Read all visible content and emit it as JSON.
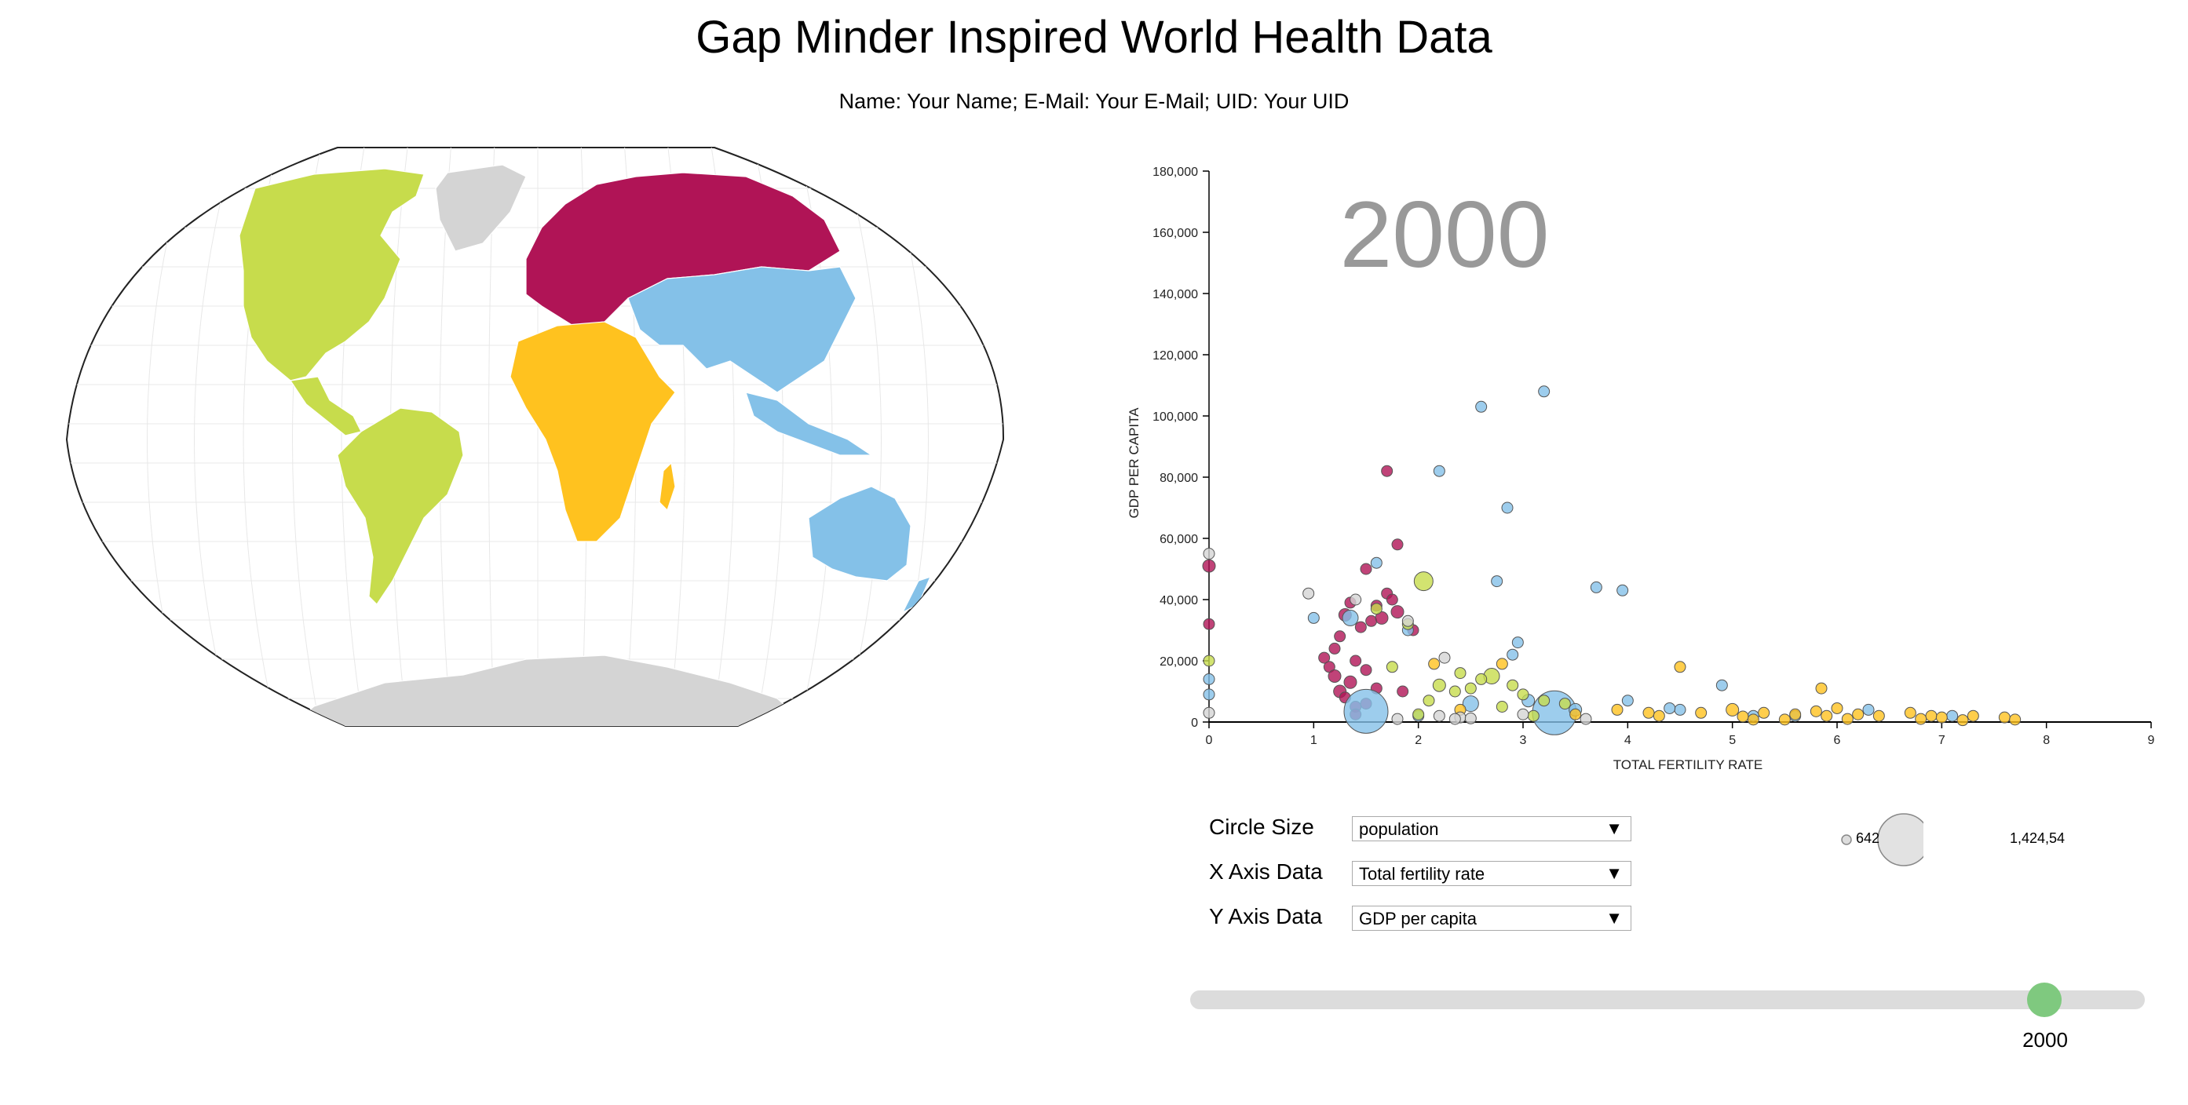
{
  "header": {
    "title": "Gap Minder Inspired World Health Data",
    "subtitle": "Name: Your Name; E-Mail: Your E-Mail; UID: Your UID"
  },
  "regions": {
    "americas": "#c7dc4c",
    "europe": "#b01456",
    "africa": "#ffc21f",
    "asia": "#84c1e8",
    "none": "#d4d4d4"
  },
  "controls": {
    "circle_size": {
      "label": "Circle Size",
      "value": "population"
    },
    "x_axis": {
      "label": "X Axis Data",
      "value": "Total fertility rate"
    },
    "y_axis": {
      "label": "Y Axis Data",
      "value": "GDP per capita"
    },
    "dropdown_icon": "triangle-down-icon"
  },
  "size_legend": {
    "min_label": "642",
    "max_label": "1,424,54"
  },
  "slider": {
    "value": "2000",
    "fraction": 0.895
  },
  "chart_data": {
    "type": "scatter",
    "year_label": "2000",
    "xlabel": "TOTAL FERTILITY RATE",
    "ylabel": "GDP PER CAPITA",
    "xlim": [
      0,
      9
    ],
    "ylim": [
      0,
      180000
    ],
    "x_ticks": [
      "0",
      "1",
      "2",
      "3",
      "4",
      "5",
      "6",
      "7",
      "8",
      "9"
    ],
    "y_ticks": [
      "0",
      "20,000",
      "40,000",
      "60,000",
      "80,000",
      "100,000",
      "120,000",
      "140,000",
      "160,000",
      "180,000"
    ],
    "series": [
      {
        "color": "#b01456",
        "points": [
          [
            0,
            51000,
            8
          ],
          [
            0,
            32000,
            7
          ],
          [
            1.1,
            21000,
            7
          ],
          [
            1.15,
            18000,
            7
          ],
          [
            1.2,
            15000,
            8
          ],
          [
            1.2,
            24000,
            7
          ],
          [
            1.25,
            10000,
            8
          ],
          [
            1.25,
            28000,
            7
          ],
          [
            1.3,
            35000,
            8
          ],
          [
            1.3,
            8000,
            7
          ],
          [
            1.35,
            13000,
            8
          ],
          [
            1.35,
            39000,
            7
          ],
          [
            1.4,
            20000,
            7
          ],
          [
            1.4,
            5000,
            7
          ],
          [
            1.45,
            31000,
            7
          ],
          [
            1.5,
            17000,
            7
          ],
          [
            1.5,
            50000,
            7
          ],
          [
            1.55,
            33000,
            7
          ],
          [
            1.6,
            38000,
            7
          ],
          [
            1.6,
            11000,
            7
          ],
          [
            1.65,
            34000,
            8
          ],
          [
            1.7,
            82000,
            7
          ],
          [
            1.7,
            42000,
            7
          ],
          [
            1.75,
            40000,
            7
          ],
          [
            1.8,
            36000,
            8
          ],
          [
            1.8,
            58000,
            7
          ],
          [
            1.85,
            10000,
            7
          ],
          [
            1.95,
            30000,
            7
          ],
          [
            1.5,
            6000,
            7
          ],
          [
            1.4,
            2500,
            7
          ]
        ]
      },
      {
        "color": "#84c1e8",
        "points": [
          [
            1.5,
            3500,
            28
          ],
          [
            3.3,
            3000,
            28
          ],
          [
            2.6,
            103000,
            7
          ],
          [
            3.2,
            108000,
            7
          ],
          [
            2.2,
            82000,
            7
          ],
          [
            2.85,
            70000,
            7
          ],
          [
            2.75,
            46000,
            7
          ],
          [
            3.7,
            44000,
            7
          ],
          [
            3.95,
            43000,
            7
          ],
          [
            1.6,
            52000,
            7
          ],
          [
            1.0,
            34000,
            7
          ],
          [
            1.35,
            34000,
            10
          ],
          [
            1.9,
            30000,
            7
          ],
          [
            2.95,
            26000,
            7
          ],
          [
            2.9,
            22000,
            7
          ],
          [
            4.9,
            12000,
            7
          ],
          [
            2.5,
            6000,
            10
          ],
          [
            3.05,
            7000,
            8
          ],
          [
            4.0,
            7000,
            7
          ],
          [
            4.5,
            4000,
            7
          ],
          [
            5.2,
            2000,
            7
          ],
          [
            6.3,
            4000,
            7
          ],
          [
            7.1,
            2000,
            7
          ],
          [
            5.6,
            2000,
            7
          ],
          [
            2.0,
            2000,
            7
          ],
          [
            0,
            14000,
            7
          ],
          [
            0,
            9000,
            7
          ],
          [
            3.5,
            4000,
            8
          ],
          [
            4.4,
            4500,
            7
          ]
        ]
      },
      {
        "color": "#c7dc4c",
        "points": [
          [
            2.05,
            46000,
            12
          ],
          [
            1.6,
            37000,
            7
          ],
          [
            1.9,
            32000,
            7
          ],
          [
            2.4,
            16000,
            7
          ],
          [
            2.7,
            15000,
            10
          ],
          [
            2.9,
            12000,
            7
          ],
          [
            2.2,
            12000,
            8
          ],
          [
            2.35,
            10000,
            7
          ],
          [
            2.5,
            11000,
            7
          ],
          [
            3.0,
            9000,
            7
          ],
          [
            3.2,
            7000,
            7
          ],
          [
            2.1,
            7000,
            7
          ],
          [
            2.8,
            5000,
            7
          ],
          [
            3.4,
            6000,
            7
          ],
          [
            2.0,
            2500,
            7
          ],
          [
            2.6,
            14000,
            7
          ],
          [
            0,
            20000,
            7
          ],
          [
            3.1,
            2000,
            7
          ],
          [
            1.75,
            18000,
            7
          ]
        ]
      },
      {
        "color": "#ffc21f",
        "points": [
          [
            2.15,
            19000,
            7
          ],
          [
            2.8,
            19000,
            7
          ],
          [
            4.5,
            18000,
            7
          ],
          [
            5.85,
            11000,
            7
          ],
          [
            5.0,
            4000,
            8
          ],
          [
            5.3,
            3000,
            7
          ],
          [
            5.6,
            2500,
            7
          ],
          [
            5.9,
            2000,
            7
          ],
          [
            6.0,
            4500,
            7
          ],
          [
            6.4,
            2000,
            7
          ],
          [
            6.7,
            3000,
            7
          ],
          [
            6.9,
            2000,
            7
          ],
          [
            7.0,
            1500,
            7
          ],
          [
            7.3,
            2000,
            7
          ],
          [
            7.6,
            1500,
            7
          ],
          [
            5.8,
            3500,
            7
          ],
          [
            4.7,
            3000,
            7
          ],
          [
            5.1,
            1800,
            7
          ],
          [
            3.9,
            4000,
            7
          ],
          [
            4.2,
            3000,
            7
          ],
          [
            6.1,
            1000,
            7
          ],
          [
            6.8,
            1000,
            7
          ],
          [
            7.7,
            800,
            7
          ],
          [
            5.5,
            800,
            7
          ],
          [
            4.3,
            2000,
            7
          ],
          [
            2.4,
            4000,
            7
          ],
          [
            3.5,
            2500,
            7
          ],
          [
            6.2,
            2500,
            7
          ],
          [
            5.2,
            800,
            7
          ],
          [
            7.2,
            600,
            7
          ]
        ]
      },
      {
        "color": "#d4d4d4",
        "points": [
          [
            0,
            55000,
            7
          ],
          [
            0.95,
            42000,
            7
          ],
          [
            1.9,
            33000,
            7
          ],
          [
            2.25,
            21000,
            7
          ],
          [
            0,
            3000,
            7
          ],
          [
            3.0,
            2500,
            7
          ],
          [
            2.4,
            1500,
            7
          ],
          [
            1.8,
            1000,
            7
          ],
          [
            3.6,
            1000,
            7
          ],
          [
            2.35,
            1000,
            7
          ],
          [
            2.2,
            2000,
            7
          ],
          [
            1.4,
            40000,
            7
          ],
          [
            2.5,
            1200,
            7
          ]
        ]
      }
    ]
  }
}
